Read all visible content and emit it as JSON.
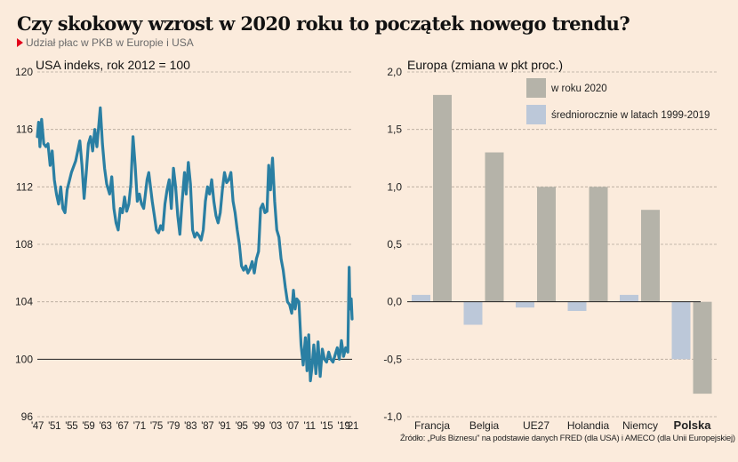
{
  "header": {
    "title": "Czy skokowy wzrost w 2020 roku to początek nowego trendu?",
    "subtitle": "Udział płac w PKB w Europie i USA",
    "subtitle_marker_color": "#e3001b"
  },
  "source": "Źródło: „Puls Biznesu\" na podstawie danych FRED (dla USA) i AMECO (dla Unii Europejskiej)",
  "chart_data": [
    {
      "type": "line",
      "title": "USA indeks, rok 2012 = 100",
      "xlabel": "",
      "ylabel": "",
      "ylim": [
        96,
        120
      ],
      "xlim": [
        1947,
        2021
      ],
      "yticks": [
        120,
        116,
        112,
        108,
        104,
        100,
        96
      ],
      "ytick_labels": [
        "120",
        "116",
        "112",
        "108",
        "104",
        "100",
        "96"
      ],
      "xticks": [
        1947,
        1951,
        1955,
        1959,
        1963,
        1967,
        1971,
        1975,
        1979,
        1983,
        1987,
        1991,
        1995,
        1999,
        2003,
        2007,
        2011,
        2015,
        2019,
        2021
      ],
      "xtick_labels": [
        "'47",
        "'51",
        "'55",
        "'59",
        "'63",
        "'67",
        "'71",
        "'75",
        "'79",
        "'83",
        "'87",
        "'91",
        "'95",
        "'99",
        "'03",
        "'07",
        "'11",
        "'15",
        "'19",
        "'21"
      ],
      "grid": true,
      "baseline": 100,
      "color": "#2a7fa3",
      "series": [
        {
          "name": "USA",
          "x": [
            1947.0,
            1947.3,
            1947.6,
            1948.0,
            1948.5,
            1949.0,
            1949.5,
            1950.0,
            1950.5,
            1951.0,
            1951.5,
            1952.0,
            1952.5,
            1953.0,
            1953.5,
            1954.0,
            1955.0,
            1956.0,
            1957.0,
            1957.5,
            1958.0,
            1958.5,
            1959.0,
            1959.5,
            1960.0,
            1960.5,
            1961.0,
            1961.8,
            1962.3,
            1962.8,
            1963.3,
            1964.0,
            1964.5,
            1965.0,
            1965.5,
            1966.0,
            1966.5,
            1967.0,
            1967.5,
            1968.0,
            1968.5,
            1969.0,
            1969.5,
            1970.0,
            1970.5,
            1971.0,
            1971.5,
            1972.0,
            1972.8,
            1973.2,
            1974.0,
            1974.5,
            1975.0,
            1975.5,
            1976.0,
            1976.5,
            1977.0,
            1977.5,
            1978.0,
            1978.5,
            1979.0,
            1979.5,
            1980.0,
            1980.5,
            1981.0,
            1981.6,
            1982.0,
            1982.5,
            1983.0,
            1983.5,
            1984.0,
            1984.5,
            1985.0,
            1985.5,
            1986.0,
            1986.5,
            1987.0,
            1987.5,
            1988.0,
            1988.5,
            1989.0,
            1989.5,
            1990.0,
            1990.5,
            1991.0,
            1991.5,
            1992.0,
            1992.5,
            1993.0,
            1993.5,
            1994.0,
            1994.5,
            1995.0,
            1995.5,
            1996.0,
            1996.5,
            1997.0,
            1997.5,
            1998.0,
            1998.5,
            1999.0,
            1999.5,
            2000.0,
            2000.5,
            2001.0,
            2001.4,
            2001.8,
            2002.3,
            2002.8,
            2003.3,
            2003.8,
            2004.3,
            2004.8,
            2005.3,
            2005.8,
            2006.3,
            2006.8,
            2007.2,
            2007.6,
            2008.0,
            2008.5,
            2009.0,
            2009.5,
            2010.0,
            2010.4,
            2010.8,
            2011.2,
            2011.6,
            2012.0,
            2012.5,
            2013.0,
            2013.5,
            2014.0,
            2014.5,
            2015.0,
            2015.5,
            2016.0,
            2016.5,
            2017.0,
            2017.5,
            2018.0,
            2018.5,
            2019.0,
            2019.5,
            2020.0,
            2020.3,
            2020.5,
            2020.8,
            2021.0
          ],
          "values": [
            115.5,
            116.5,
            114.8,
            116.7,
            115.0,
            114.8,
            115.0,
            113.5,
            114.5,
            112.5,
            111.5,
            110.8,
            112.0,
            110.5,
            110.2,
            111.8,
            113.0,
            113.8,
            115.2,
            113.5,
            111.2,
            113.0,
            115.0,
            115.5,
            114.5,
            116.0,
            114.8,
            117.5,
            115.0,
            113.3,
            112.2,
            111.5,
            112.7,
            110.5,
            109.5,
            109.0,
            110.5,
            110.2,
            111.3,
            110.3,
            110.8,
            112.2,
            115.5,
            113.5,
            111.0,
            111.5,
            110.8,
            110.5,
            112.5,
            113.0,
            111.0,
            110.0,
            109.0,
            108.8,
            109.3,
            109.0,
            110.8,
            111.8,
            112.5,
            110.5,
            113.3,
            112.0,
            110.0,
            108.7,
            110.8,
            113.0,
            111.5,
            113.7,
            112.2,
            109.0,
            108.5,
            108.8,
            108.6,
            108.3,
            109.0,
            111.0,
            112.0,
            111.5,
            112.5,
            111.0,
            110.0,
            109.5,
            110.2,
            111.8,
            113.0,
            112.3,
            112.5,
            113.0,
            111.0,
            110.2,
            109.0,
            108.0,
            106.5,
            106.2,
            106.5,
            106.0,
            106.3,
            106.8,
            106.0,
            107.0,
            107.5,
            110.5,
            110.8,
            110.2,
            110.3,
            113.5,
            111.8,
            114.0,
            111.0,
            109.0,
            108.5,
            107.0,
            106.2,
            105.0,
            104.0,
            103.8,
            103.2,
            104.8,
            103.5,
            104.2,
            104.0,
            101.0,
            99.6,
            101.5,
            99.2,
            101.7,
            98.5,
            99.5,
            101.0,
            99.0,
            101.2,
            98.8,
            100.7,
            100.0,
            99.8,
            100.5,
            100.0,
            99.8,
            100.3,
            100.8,
            100.0,
            101.3,
            100.2,
            100.8,
            100.5,
            106.4,
            103.5,
            104.2,
            102.8
          ]
        }
      ]
    },
    {
      "type": "bar",
      "title": "Europa (zmiana w pkt proc.)",
      "xlabel": "",
      "ylabel": "",
      "ylim": [
        -1.0,
        2.0
      ],
      "yticks": [
        2.0,
        1.5,
        1.0,
        0.5,
        0.0,
        -0.5,
        -1.0
      ],
      "ytick_labels": [
        "2,0",
        "1,5",
        "1,0",
        "0,5",
        "0,0",
        "-0,5",
        "-1,0"
      ],
      "grid": true,
      "legend_position": "top-right",
      "categories": [
        "Francja",
        "Belgia",
        "UE27",
        "Holandia",
        "Niemcy",
        "Polska"
      ],
      "highlighted_category": "Polska",
      "series": [
        {
          "name": "średniorocznie w latach 1999-2019",
          "color": "#bcc8d9",
          "values": [
            0.06,
            -0.2,
            -0.05,
            -0.08,
            0.06,
            -0.5
          ]
        },
        {
          "name": "w roku 2020",
          "color": "#b5b3a9",
          "values": [
            1.8,
            1.3,
            1.0,
            1.0,
            0.8,
            -0.8
          ]
        }
      ],
      "legend": [
        {
          "label": "w roku 2020",
          "color": "#b5b3a9"
        },
        {
          "label": "średniorocznie w latach 1999-2019",
          "color": "#bcc8d9"
        }
      ]
    }
  ]
}
